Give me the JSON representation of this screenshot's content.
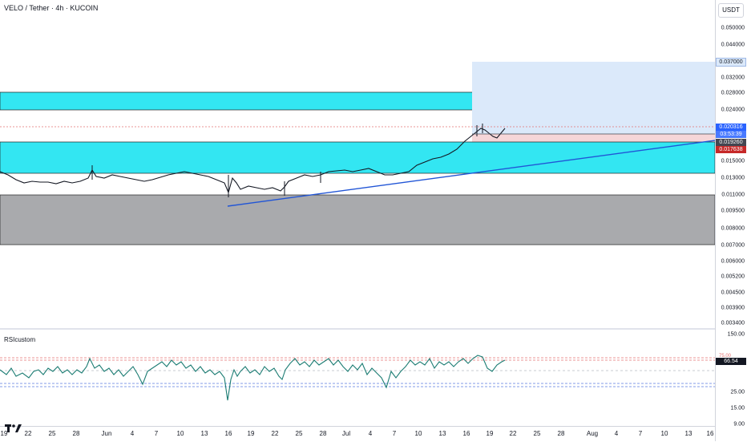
{
  "header": {
    "symbol_title": "VELO / Tether · 4h · KUCOIN",
    "currency_button": "USDT"
  },
  "price_axis": {
    "ticks": [
      "0.050000",
      "0.044000",
      "0.037000",
      "0.032000",
      "0.028000",
      "0.024000",
      "0.020316",
      "0.019260",
      "0.017638",
      "0.015000",
      "0.013000",
      "0.011000",
      "0.009500",
      "0.008000",
      "0.007000",
      "0.006000",
      "0.005200",
      "0.004500",
      "0.003900",
      "0.003400"
    ]
  },
  "price_tags": {
    "target": "0.037000",
    "current_price": "0.020316",
    "countdown": "03:53:39",
    "entry": "0.019260",
    "stop": "0.017638"
  },
  "rsi": {
    "title": "RSIcustom",
    "ticks": [
      "150.00",
      "75.00",
      "25.00",
      "15.00",
      "9.00"
    ],
    "current_value": "66.54",
    "overbought_level": 75,
    "oversold_level": 25
  },
  "time_axis": {
    "labels": [
      "19",
      "22",
      "25",
      "28",
      "Jun",
      "4",
      "7",
      "10",
      "13",
      "16",
      "19",
      "22",
      "25",
      "28",
      "Jul",
      "4",
      "7",
      "10",
      "13",
      "16",
      "19",
      "22",
      "25",
      "28",
      "Aug",
      "4",
      "7",
      "10",
      "13",
      "16"
    ]
  },
  "colors": {
    "resistance_zone": "#33e6f2",
    "demand_zone": "#a9aaad",
    "trendline": "#2155d6",
    "target_zone": "#dbe9fa",
    "stop_zone": "#f6d6d8",
    "current_price_tag": "#2962ff",
    "stop_tag": "#c62828",
    "entry_tag": "#434651",
    "rsi_line": "#1d7d74"
  }
}
